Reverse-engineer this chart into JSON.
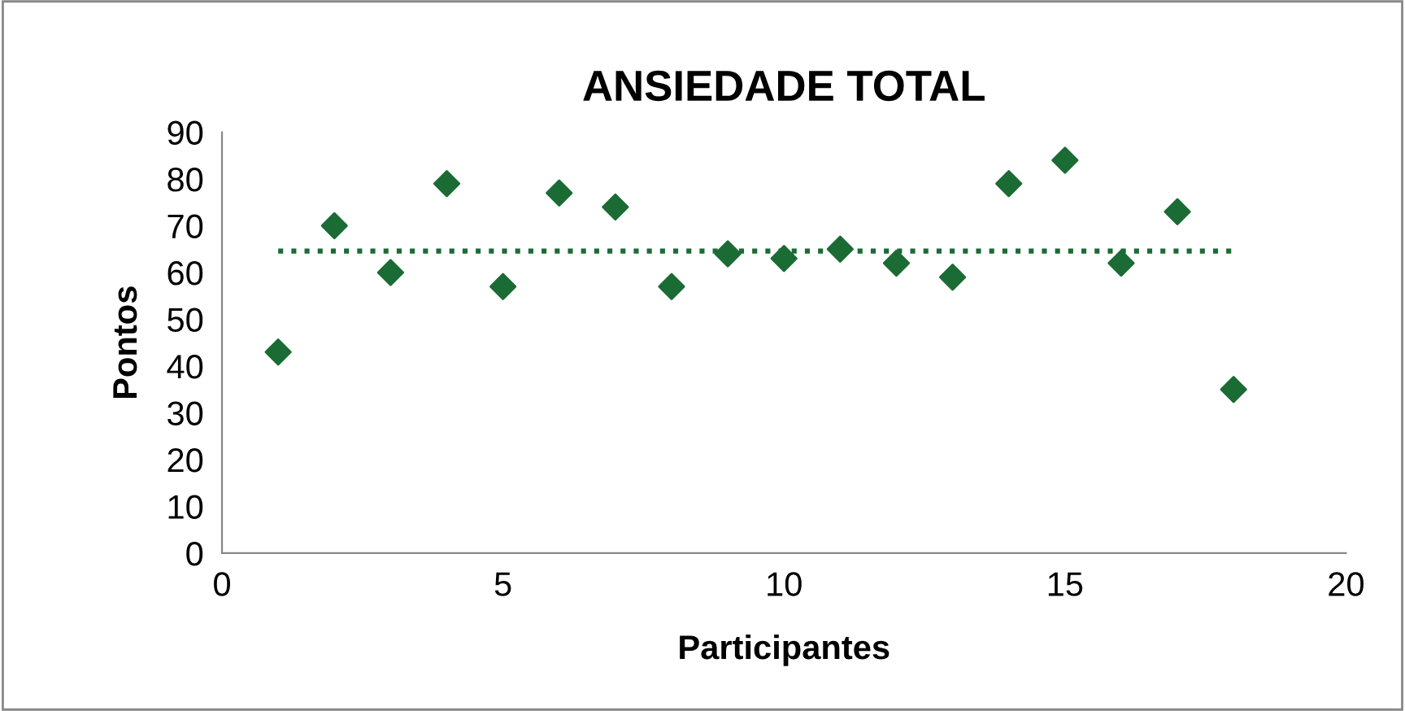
{
  "chart_data": {
    "type": "scatter",
    "title": "ANSIEDADE TOTAL",
    "xlabel": "Participantes",
    "ylabel": "Pontos",
    "x": [
      1,
      2,
      3,
      4,
      5,
      6,
      7,
      8,
      9,
      10,
      11,
      12,
      13,
      14,
      15,
      16,
      17,
      18
    ],
    "series": [
      {
        "color": "#1b6b35",
        "marker": "diamond",
        "values": [
          43,
          70,
          60,
          79,
          57,
          77,
          74,
          57,
          64,
          63,
          65,
          62,
          59,
          79,
          84,
          62,
          73,
          35
        ]
      },
      {
        "type": "line",
        "color": "#1b6b35",
        "line_style": "dotted",
        "x": [
          1,
          18
        ],
        "values": [
          64.6,
          64.6
        ]
      }
    ],
    "xlim": [
      0,
      20
    ],
    "xticks": [
      0,
      5,
      10,
      15,
      20
    ],
    "ylim": [
      0,
      90
    ],
    "yticks": [
      0,
      10,
      20,
      30,
      40,
      50,
      60,
      70,
      80,
      90
    ],
    "grid": false,
    "legend": false
  }
}
